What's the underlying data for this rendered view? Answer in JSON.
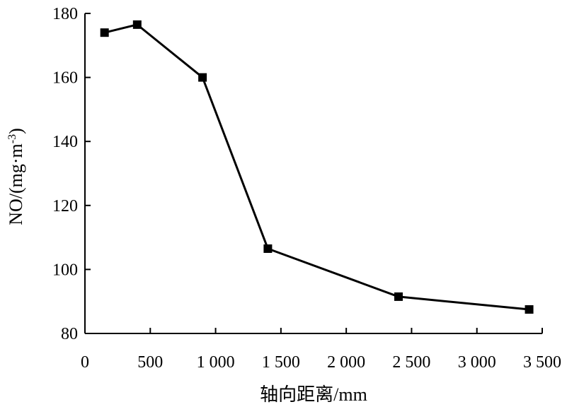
{
  "chart_data": {
    "type": "line",
    "title": "",
    "xlabel": "轴向距离/mm",
    "ylabel": "NO/(mg·m-3)",
    "ylabel_parts": {
      "main": "NO/(mg·m",
      "sup": "-3",
      "close": ")"
    },
    "xlim": [
      0,
      3500
    ],
    "ylim": [
      80,
      180
    ],
    "xticks": [
      0,
      500,
      1000,
      1500,
      2000,
      2500,
      3000,
      3500
    ],
    "xtick_labels": [
      "0",
      "500",
      "1 000",
      "1 500",
      "2 000",
      "2 500",
      "3 000",
      "3 500"
    ],
    "yticks": [
      80,
      100,
      120,
      140,
      160,
      180
    ],
    "ytick_labels": [
      "80",
      "100",
      "120",
      "140",
      "160",
      "180"
    ],
    "grid": false,
    "legend": false,
    "series": [
      {
        "marker": "square",
        "color": "#000000",
        "x": [
          150,
          400,
          900,
          1400,
          2400,
          3400
        ],
        "y": [
          174,
          176.5,
          160,
          106.5,
          91.5,
          87.5
        ]
      }
    ]
  }
}
